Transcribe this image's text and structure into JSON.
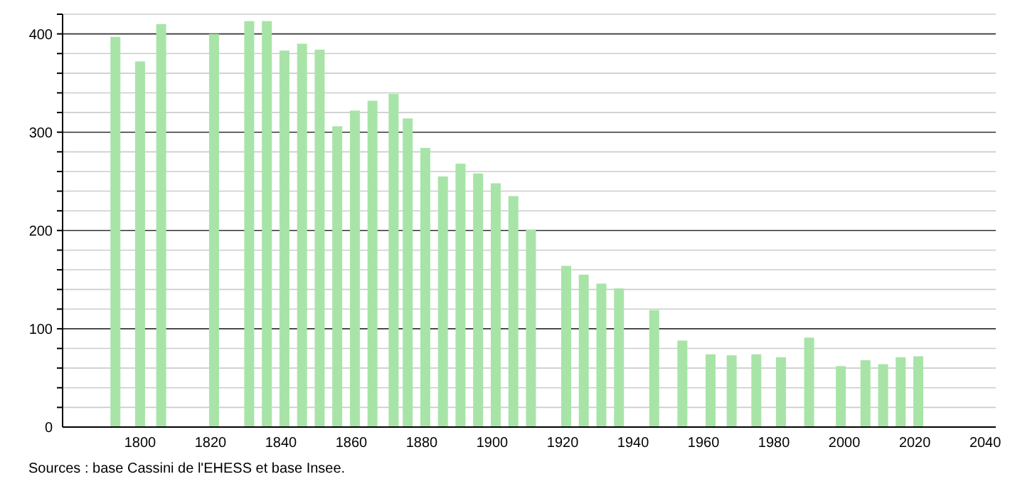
{
  "chart_data": {
    "type": "bar",
    "x": [
      1793,
      1800,
      1806,
      1821,
      1831,
      1836,
      1841,
      1846,
      1851,
      1856,
      1861,
      1866,
      1872,
      1876,
      1881,
      1886,
      1891,
      1896,
      1901,
      1906,
      1911,
      1921,
      1926,
      1931,
      1936,
      1946,
      1954,
      1962,
      1968,
      1975,
      1982,
      1990,
      1999,
      2006,
      2011,
      2016,
      2021
    ],
    "values": [
      397,
      372,
      410,
      400,
      413,
      413,
      383,
      390,
      384,
      306,
      322,
      332,
      339,
      314,
      284,
      255,
      268,
      258,
      248,
      235,
      201,
      164,
      155,
      146,
      141,
      119,
      88,
      74,
      73,
      74,
      71,
      91,
      62,
      68,
      64,
      71,
      72
    ],
    "color": "#a8e4a8",
    "xlim": [
      1778,
      2043
    ],
    "xticks": [
      1800,
      1820,
      1840,
      1860,
      1880,
      1900,
      1920,
      1940,
      1960,
      1980,
      2000,
      2020,
      2040
    ],
    "ylim": [
      0,
      420
    ],
    "yticks": [
      0,
      {
        "value": 20,
        "label": null
      },
      {
        "value": 40,
        "label": null
      },
      {
        "value": 60,
        "label": null
      },
      {
        "value": 80,
        "label": null
      },
      100,
      {
        "value": 120,
        "label": null
      },
      {
        "value": 140,
        "label": null
      },
      {
        "value": 160,
        "label": null
      },
      {
        "value": 180,
        "label": null
      },
      200,
      {
        "value": 220,
        "label": null
      },
      {
        "value": 240,
        "label": null
      },
      {
        "value": 260,
        "label": null
      },
      {
        "value": 280,
        "label": null
      },
      300,
      {
        "value": 320,
        "label": null
      },
      {
        "value": 340,
        "label": null
      },
      {
        "value": 360,
        "label": null
      },
      {
        "value": 380,
        "label": null
      },
      400,
      {
        "value": 420,
        "label": null
      }
    ],
    "grid": true,
    "annotations": [
      "Sources : base Cassini de l'EHESS et base Insee."
    ]
  }
}
